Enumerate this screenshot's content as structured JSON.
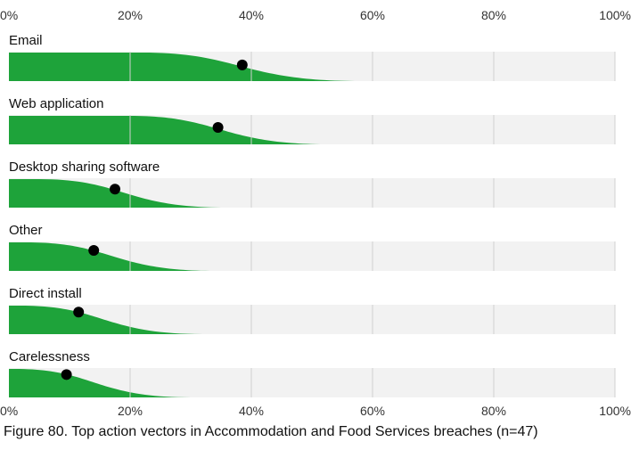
{
  "chart_data": {
    "type": "area",
    "title": "Figure 80. Top action vectors in Accommodation and Food Services breaches (n=47)",
    "ticks": [
      "0%",
      "20%",
      "40%",
      "60%",
      "80%",
      "100%"
    ],
    "xlim": [
      0,
      100
    ],
    "grid": true,
    "accent_color": "#1ea33a",
    "track_color": "#f2f2f2",
    "grid_color": "#d0d0d0",
    "marker_color": "#000000",
    "series": [
      {
        "name": "Email",
        "value": 38.5,
        "plateau_end": 22,
        "fade_end": 58
      },
      {
        "name": "Web application",
        "value": 34.5,
        "plateau_end": 20,
        "fade_end": 53
      },
      {
        "name": "Desktop sharing software",
        "value": 17.5,
        "plateau_end": 5,
        "fade_end": 36
      },
      {
        "name": "Other",
        "value": 14,
        "plateau_end": 3,
        "fade_end": 34
      },
      {
        "name": "Direct install",
        "value": 11.5,
        "plateau_end": 2,
        "fade_end": 32
      },
      {
        "name": "Carelessness",
        "value": 9.5,
        "plateau_end": 1,
        "fade_end": 30
      }
    ]
  }
}
